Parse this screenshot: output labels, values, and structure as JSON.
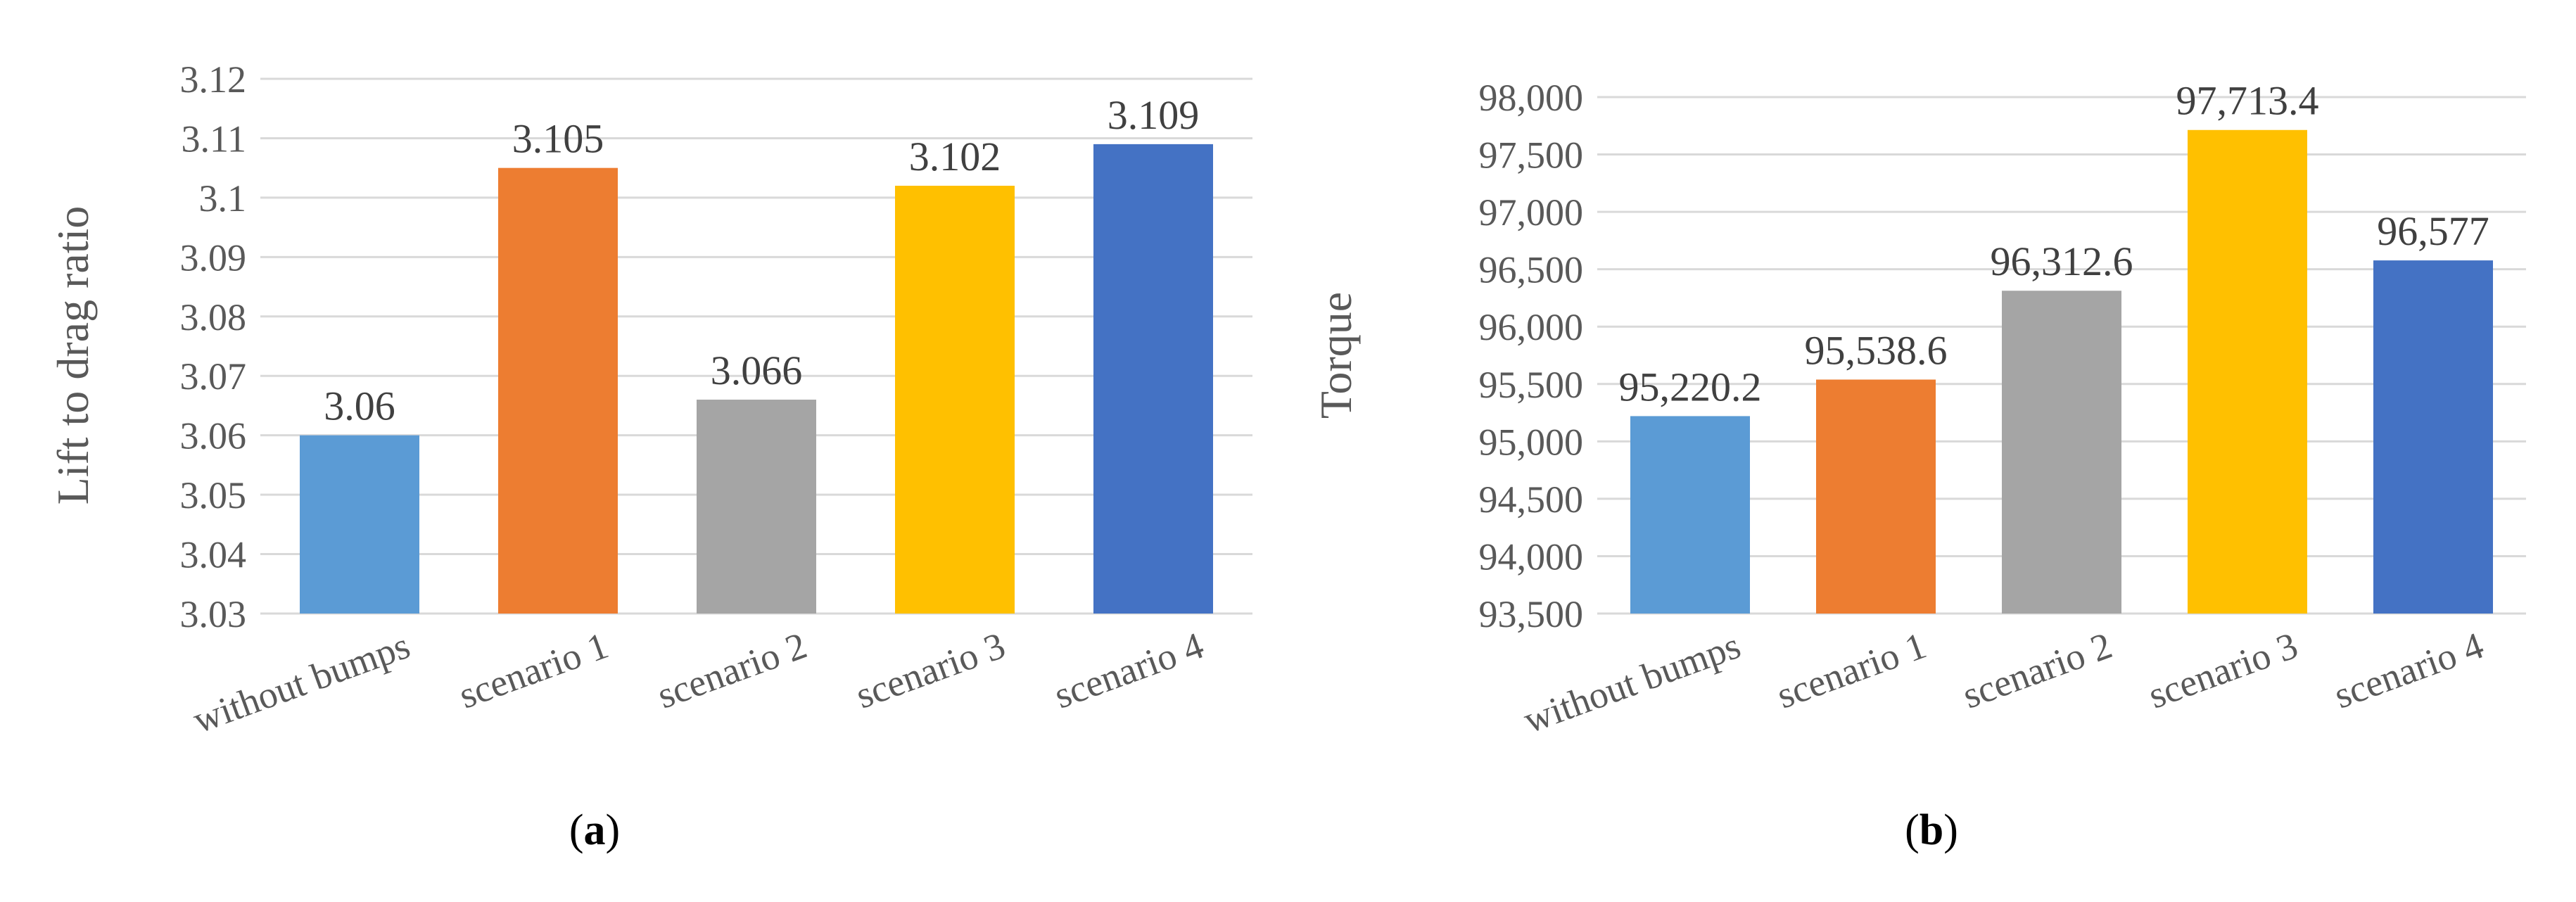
{
  "chart_data": [
    {
      "type": "bar",
      "panel_label": "a",
      "ylabel": "Lift to drag ratio",
      "xlabel": "",
      "categories": [
        "without bumps",
        "scenario 1",
        "scenario 2",
        "scenario 3",
        "scenario 4"
      ],
      "values": [
        3.06,
        3.105,
        3.066,
        3.102,
        3.109
      ],
      "data_labels": [
        "3.06",
        "3.105",
        "3.066",
        "3.102",
        "3.109"
      ],
      "colors": [
        "#5b9bd5",
        "#ed7d31",
        "#a5a5a5",
        "#ffc000",
        "#4472c4"
      ],
      "ylim": [
        3.03,
        3.12
      ],
      "yticks": [
        3.03,
        3.04,
        3.05,
        3.06,
        3.07,
        3.08,
        3.09,
        3.1,
        3.11,
        3.12
      ],
      "ytick_labels": [
        "3.03",
        "3.04",
        "3.05",
        "3.06",
        "3.07",
        "3.08",
        "3.09",
        "3.1",
        "3.11",
        "3.12"
      ],
      "grid": true,
      "legend": "none"
    },
    {
      "type": "bar",
      "panel_label": "b",
      "ylabel": "Torque",
      "xlabel": "",
      "categories": [
        "without bumps",
        "scenario 1",
        "scenario 2",
        "scenario 3",
        "scenario 4"
      ],
      "values": [
        95220.2,
        95538.6,
        96312.6,
        97713.4,
        96577
      ],
      "data_labels": [
        "95,220.2",
        "95,538.6",
        "96,312.6",
        "97,713.4",
        "96,577"
      ],
      "colors": [
        "#5b9bd5",
        "#ed7d31",
        "#a5a5a5",
        "#ffc000",
        "#4472c4"
      ],
      "ylim": [
        93500,
        98000
      ],
      "yticks": [
        93500,
        94000,
        94500,
        95000,
        95500,
        96000,
        96500,
        97000,
        97500,
        98000
      ],
      "ytick_labels": [
        "93,500",
        "94,000",
        "94,500",
        "95,000",
        "95,500",
        "96,000",
        "96,500",
        "97,000",
        "97,500",
        "98,000"
      ],
      "grid": true,
      "legend": "none"
    }
  ]
}
